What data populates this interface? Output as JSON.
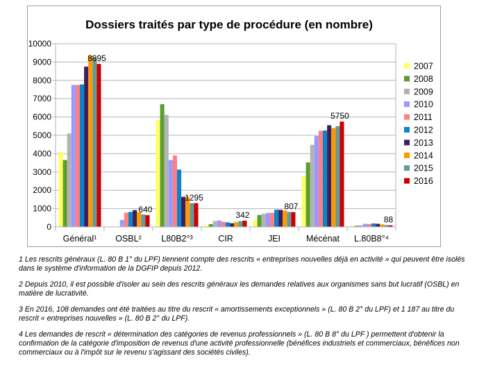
{
  "chart_data": {
    "type": "bar",
    "title": "Dossiers traités par type de procédure (en nombre)",
    "categories": [
      "Général¹",
      "OSBL²",
      "L80B2°³",
      "CIR",
      "JEI",
      "Mécénat",
      "L.80B8°⁴"
    ],
    "ylim": [
      0,
      10000
    ],
    "yticks": [
      "0",
      "1000",
      "2000",
      "3000",
      "4000",
      "5000",
      "6000",
      "7000",
      "8000",
      "9000",
      "10000"
    ],
    "grid": true,
    "legend_position": "right",
    "series": [
      {
        "name": "2007",
        "color": "#ffff66",
        "values": [
          4100,
          0,
          5850,
          100,
          380,
          2800,
          50
        ]
      },
      {
        "name": "2008",
        "color": "#5a9e2e",
        "values": [
          3650,
          0,
          6700,
          150,
          650,
          3520,
          60
        ]
      },
      {
        "name": "2009",
        "color": "#b3b3b3",
        "values": [
          5100,
          0,
          6120,
          320,
          720,
          4480,
          90
        ]
      },
      {
        "name": "2010",
        "color": "#9999ff",
        "values": [
          7750,
          380,
          3650,
          350,
          760,
          4960,
          170
        ]
      },
      {
        "name": "2011",
        "color": "#ff8080",
        "values": [
          7750,
          780,
          3900,
          280,
          770,
          5250,
          160
        ]
      },
      {
        "name": "2012",
        "color": "#0b84c9",
        "values": [
          7780,
          820,
          3130,
          250,
          940,
          5260,
          190
        ]
      },
      {
        "name": "2013",
        "color": "#3d1f5b",
        "values": [
          8750,
          920,
          1640,
          200,
          930,
          5550,
          170
        ]
      },
      {
        "name": "2014",
        "color": "#ff9900",
        "values": [
          9350,
          800,
          1640,
          260,
          900,
          5400,
          140
        ]
      },
      {
        "name": "2015",
        "color": "#669999",
        "values": [
          9250,
          680,
          1300,
          320,
          820,
          5500,
          100
        ]
      },
      {
        "name": "2016",
        "color": "#cc0000",
        "values": [
          8895,
          640,
          1295,
          342,
          807,
          5750,
          88
        ]
      }
    ],
    "data_labels": [
      "8895",
      "640",
      "1295",
      "342",
      "807",
      "5750",
      "88"
    ]
  },
  "notes": [
    "1 Les rescrits généraux (L. 80 B 1° du LPF) tiennent  compte des rescrits « entreprises nouvelles déjà en activité » qui peuvent être isolés dans le système d'information de la DGFIP depuis 2012.",
    "2 Depuis 2010, il est possible d'isoler au sein des rescrits généraux les demandes relatives aux organismes sans but lucratif (OSBL) en matière de lucrativité.",
    "3 En 2016, 108 demandes ont été traitées au titre du rescrit « amortissements exceptionnels » (L. 80 B 2° du LPF) et 1 187 au titre du rescrit « entreprises nouvelles » (L. 80 B 2° du LPF).",
    "4 Les demandes de rescrit « détermination des catégories de revenus professionnels » (L. 80 B 8° du LPF ) permettent d'obtenir la confirmation de la catégorie d'imposition de revenus d'une activité professionnelle (bénéfices industriels et commerciaux, bénéfices non commerciaux ou à l'impôt sur le revenu s'agissant des sociétés civiles)."
  ]
}
